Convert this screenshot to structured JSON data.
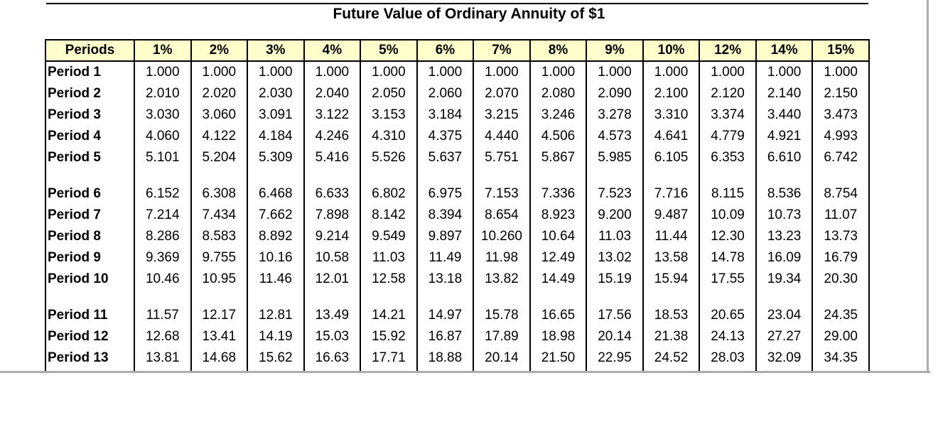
{
  "title": "Future Value of Ordinary Annuity of $1",
  "colors": {
    "header_bg": "#FFFFCC",
    "table_border": "#000000",
    "pane_divider": "#ADADAD"
  },
  "table": {
    "header_label": "Periods",
    "rate_headers": [
      "1%",
      "2%",
      "3%",
      "4%",
      "5%",
      "6%",
      "7%",
      "8%",
      "9%",
      "10%",
      "12%",
      "14%",
      "15%"
    ],
    "groups": [
      {
        "rows": [
          {
            "label": "Period 1",
            "values": [
              "1.000",
              "1.000",
              "1.000",
              "1.000",
              "1.000",
              "1.000",
              "1.000",
              "1.000",
              "1.000",
              "1.000",
              "1.000",
              "1.000",
              "1.000"
            ]
          },
          {
            "label": "Period 2",
            "values": [
              "2.010",
              "2.020",
              "2.030",
              "2.040",
              "2.050",
              "2.060",
              "2.070",
              "2.080",
              "2.090",
              "2.100",
              "2.120",
              "2.140",
              "2.150"
            ]
          },
          {
            "label": "Period 3",
            "values": [
              "3.030",
              "3.060",
              "3.091",
              "3.122",
              "3.153",
              "3.184",
              "3.215",
              "3.246",
              "3.278",
              "3.310",
              "3.374",
              "3.440",
              "3.473"
            ]
          },
          {
            "label": "Period 4",
            "values": [
              "4.060",
              "4.122",
              "4.184",
              "4.246",
              "4.310",
              "4.375",
              "4.440",
              "4.506",
              "4.573",
              "4.641",
              "4.779",
              "4.921",
              "4.993"
            ]
          },
          {
            "label": "Period 5",
            "values": [
              "5.101",
              "5.204",
              "5.309",
              "5.416",
              "5.526",
              "5.637",
              "5.751",
              "5.867",
              "5.985",
              "6.105",
              "6.353",
              "6.610",
              "6.742"
            ]
          }
        ]
      },
      {
        "rows": [
          {
            "label": "Period 6",
            "values": [
              "6.152",
              "6.308",
              "6.468",
              "6.633",
              "6.802",
              "6.975",
              "7.153",
              "7.336",
              "7.523",
              "7.716",
              "8.115",
              "8.536",
              "8.754"
            ]
          },
          {
            "label": "Period 7",
            "values": [
              "7.214",
              "7.434",
              "7.662",
              "7.898",
              "8.142",
              "8.394",
              "8.654",
              "8.923",
              "9.200",
              "9.487",
              "10.09",
              "10.73",
              "11.07"
            ]
          },
          {
            "label": "Period 8",
            "values": [
              "8.286",
              "8.583",
              "8.892",
              "9.214",
              "9.549",
              "9.897",
              "10.260",
              "10.64",
              "11.03",
              "11.44",
              "12.30",
              "13.23",
              "13.73"
            ]
          },
          {
            "label": "Period 9",
            "values": [
              "9.369",
              "9.755",
              "10.16",
              "10.58",
              "11.03",
              "11.49",
              "11.98",
              "12.49",
              "13.02",
              "13.58",
              "14.78",
              "16.09",
              "16.79"
            ]
          },
          {
            "label": "Period 10",
            "values": [
              "10.46",
              "10.95",
              "11.46",
              "12.01",
              "12.58",
              "13.18",
              "13.82",
              "14.49",
              "15.19",
              "15.94",
              "17.55",
              "19.34",
              "20.30"
            ]
          }
        ]
      },
      {
        "rows": [
          {
            "label": "Period 11",
            "values": [
              "11.57",
              "12.17",
              "12.81",
              "13.49",
              "14.21",
              "14.97",
              "15.78",
              "16.65",
              "17.56",
              "18.53",
              "20.65",
              "23.04",
              "24.35"
            ]
          },
          {
            "label": "Period 12",
            "values": [
              "12.68",
              "13.41",
              "14.19",
              "15.03",
              "15.92",
              "16.87",
              "17.89",
              "18.98",
              "20.14",
              "21.38",
              "24.13",
              "27.27",
              "29.00"
            ]
          },
          {
            "label": "Period 13",
            "values": [
              "13.81",
              "14.68",
              "15.62",
              "16.63",
              "17.71",
              "18.88",
              "20.14",
              "21.50",
              "22.95",
              "24.52",
              "28.03",
              "32.09",
              "34.35"
            ]
          }
        ]
      }
    ]
  }
}
